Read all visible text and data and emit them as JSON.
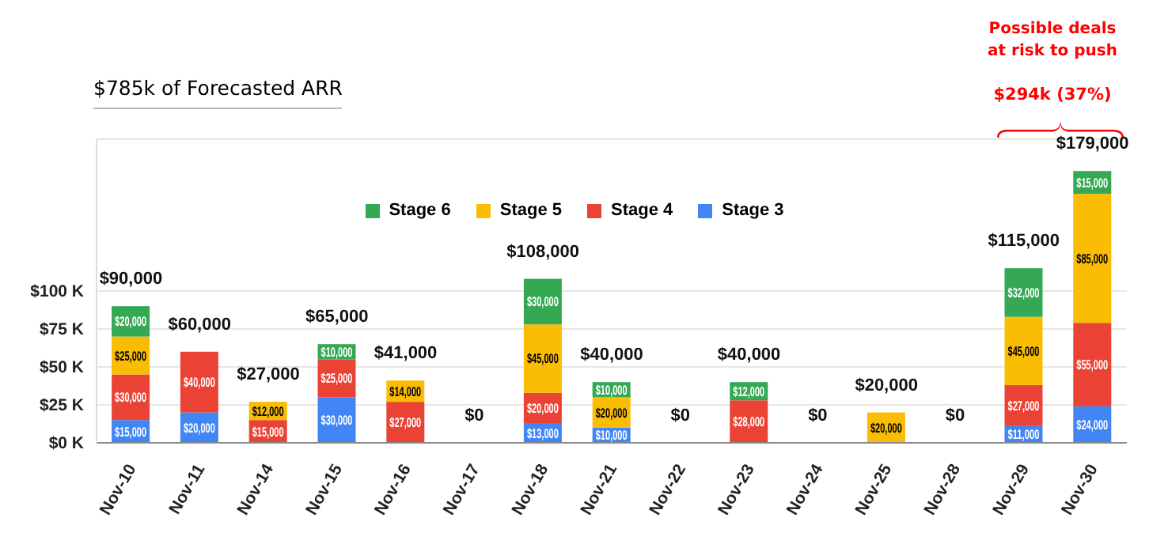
{
  "chart_data": {
    "type": "bar",
    "stacked": true,
    "annotations": [
      "$785k of Forecasted ARR",
      "Possible deals at risk to push",
      "$294k (37%)"
    ],
    "categories": [
      "Nov-10",
      "Nov-11",
      "Nov-14",
      "Nov-15",
      "Nov-16",
      "Nov-17",
      "Nov-18",
      "Nov-21",
      "Nov-22",
      "Nov-23",
      "Nov-24",
      "Nov-25",
      "Nov-28",
      "Nov-29",
      "Nov-30"
    ],
    "series": [
      {
        "name": "Stage 3",
        "color": "#4285f4",
        "values": [
          15000,
          20000,
          0,
          30000,
          0,
          0,
          13000,
          10000,
          0,
          0,
          0,
          0,
          0,
          11000,
          24000
        ],
        "value_labels": [
          "$15,000",
          "$20,000",
          null,
          "$30,000",
          null,
          null,
          "$13,000",
          "$10,000",
          null,
          null,
          null,
          null,
          null,
          "$11,000",
          "$24,000"
        ]
      },
      {
        "name": "Stage 4",
        "color": "#ea4335",
        "values": [
          30000,
          40000,
          15000,
          25000,
          27000,
          0,
          20000,
          0,
          0,
          28000,
          0,
          0,
          0,
          27000,
          55000
        ],
        "value_labels": [
          "$30,000",
          "$40,000",
          "$15,000",
          "$25,000",
          "$27,000",
          null,
          "$20,000",
          null,
          null,
          "$28,000",
          null,
          null,
          null,
          "$27,000",
          "$55,000"
        ]
      },
      {
        "name": "Stage 5",
        "color": "#fbbc04",
        "values": [
          25000,
          0,
          12000,
          0,
          14000,
          0,
          45000,
          20000,
          0,
          0,
          0,
          20000,
          0,
          45000,
          85000
        ],
        "value_labels": [
          "$25,000",
          null,
          "$12,000",
          null,
          "$14,000",
          null,
          "$45,000",
          "$20,000",
          null,
          null,
          null,
          "$20,000",
          null,
          "$45,000",
          "$85,000"
        ]
      },
      {
        "name": "Stage 6",
        "color": "#34a853",
        "values": [
          20000,
          0,
          0,
          10000,
          0,
          0,
          30000,
          10000,
          0,
          12000,
          0,
          0,
          0,
          32000,
          15000
        ],
        "value_labels": [
          "$20,000",
          null,
          null,
          "$10,000",
          null,
          null,
          "$30,000",
          "$10,000",
          null,
          "$12,000",
          null,
          null,
          null,
          "$32,000",
          "$15,000"
        ]
      }
    ],
    "totals": [
      "$90,000",
      "$60,000",
      "$27,000",
      "$65,000",
      "$41,000",
      "$0",
      "$108,000",
      "$40,000",
      "$0",
      "$40,000",
      "$0",
      "$20,000",
      "$0",
      "$115,000",
      "$179,000"
    ],
    "ylim": [
      0,
      200000
    ],
    "yticks": [
      {
        "value": 0,
        "label": "$0 K"
      },
      {
        "value": 25000,
        "label": "$25 K"
      },
      {
        "value": 50000,
        "label": "$50 K"
      },
      {
        "value": 75000,
        "label": "$75 K"
      },
      {
        "value": 100000,
        "label": "$100 K"
      }
    ],
    "grid": "y",
    "legend": "top"
  }
}
